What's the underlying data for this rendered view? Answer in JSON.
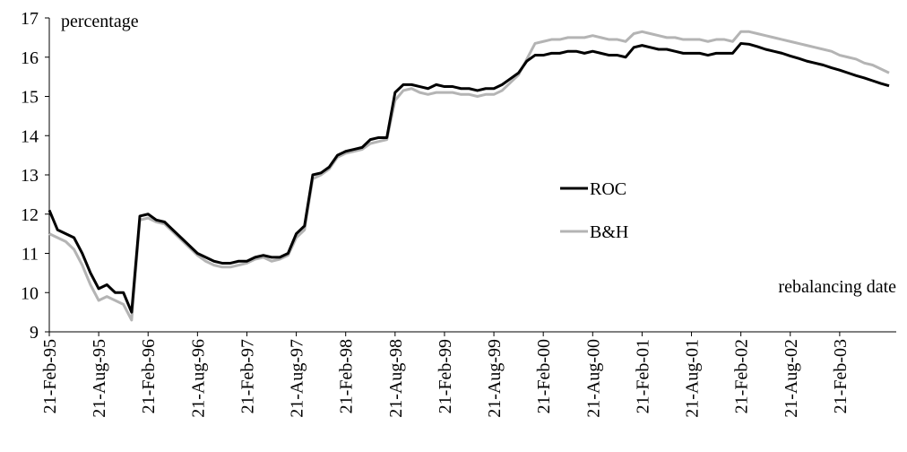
{
  "chart_data": {
    "type": "line",
    "annotations": [
      "percentage",
      "rebalancing date"
    ],
    "categories": [
      "21-Feb-95",
      null,
      null,
      null,
      null,
      null,
      "21-Aug-95",
      null,
      null,
      null,
      null,
      null,
      "21-Feb-96",
      null,
      null,
      null,
      null,
      null,
      "21-Aug-96",
      null,
      null,
      null,
      null,
      null,
      "21-Feb-97",
      null,
      null,
      null,
      null,
      null,
      "21-Aug-97",
      null,
      null,
      null,
      null,
      null,
      "21-Feb-98",
      null,
      null,
      null,
      null,
      null,
      "21-Aug-98",
      null,
      null,
      null,
      null,
      null,
      "21-Feb-99",
      null,
      null,
      null,
      null,
      null,
      "21-Aug-99",
      null,
      null,
      null,
      null,
      null,
      "21-Feb-00",
      null,
      null,
      null,
      null,
      null,
      "21-Aug-00",
      null,
      null,
      null,
      null,
      null,
      "21-Feb-01",
      null,
      null,
      null,
      null,
      null,
      "21-Aug-01",
      null,
      null,
      null,
      null,
      null,
      "21-Feb-02",
      null,
      null,
      null,
      null,
      null,
      "21-Aug-02",
      null,
      null,
      null,
      null,
      null,
      "21-Feb-03",
      null,
      null,
      null,
      null,
      null,
      null
    ],
    "series": [
      {
        "name": "ROC",
        "color": "#000000",
        "values": [
          12.1,
          11.6,
          11.5,
          11.4,
          11.0,
          10.5,
          10.1,
          10.2,
          10.0,
          10.0,
          9.5,
          11.95,
          12.0,
          11.85,
          11.8,
          11.6,
          11.4,
          11.2,
          11.0,
          10.9,
          10.8,
          10.75,
          10.75,
          10.8,
          10.8,
          10.9,
          10.95,
          10.9,
          10.9,
          11.0,
          11.5,
          11.7,
          13.0,
          13.05,
          13.2,
          13.5,
          13.6,
          13.65,
          13.7,
          13.9,
          13.95,
          13.95,
          15.1,
          15.3,
          15.3,
          15.25,
          15.2,
          15.3,
          15.25,
          15.25,
          15.2,
          15.2,
          15.15,
          15.2,
          15.2,
          15.3,
          15.45,
          15.6,
          15.9,
          16.05,
          16.05,
          16.1,
          16.1,
          16.15,
          16.15,
          16.1,
          16.15,
          16.1,
          16.05,
          16.05,
          16.0,
          16.25,
          16.3,
          16.25,
          16.2,
          16.2,
          16.15,
          16.1,
          16.1,
          16.1,
          16.05,
          16.1,
          16.1,
          16.1,
          16.35,
          16.33,
          16.27,
          16.2,
          16.15,
          16.1,
          16.03,
          15.97,
          15.9,
          15.85,
          15.8,
          15.73,
          15.67,
          15.6,
          15.53,
          15.47,
          15.4,
          15.33,
          15.27
        ]
      },
      {
        "name": "B&H",
        "color": "#b4b4b4",
        "values": [
          11.5,
          11.4,
          11.3,
          11.1,
          10.7,
          10.2,
          9.8,
          9.9,
          9.8,
          9.7,
          9.3,
          11.85,
          11.9,
          11.8,
          11.75,
          11.55,
          11.35,
          11.15,
          10.95,
          10.8,
          10.7,
          10.65,
          10.65,
          10.7,
          10.75,
          10.85,
          10.9,
          10.8,
          10.85,
          10.95,
          11.4,
          11.6,
          12.9,
          13.0,
          13.15,
          13.45,
          13.55,
          13.6,
          13.65,
          13.8,
          13.85,
          13.9,
          14.9,
          15.15,
          15.2,
          15.1,
          15.05,
          15.1,
          15.1,
          15.1,
          15.05,
          15.05,
          15.0,
          15.05,
          15.05,
          15.15,
          15.35,
          15.55,
          15.95,
          16.35,
          16.4,
          16.45,
          16.45,
          16.5,
          16.5,
          16.5,
          16.55,
          16.5,
          16.45,
          16.45,
          16.4,
          16.6,
          16.65,
          16.6,
          16.55,
          16.5,
          16.5,
          16.45,
          16.45,
          16.45,
          16.4,
          16.45,
          16.45,
          16.4,
          16.65,
          16.65,
          16.6,
          16.55,
          16.5,
          16.45,
          16.4,
          16.35,
          16.3,
          16.25,
          16.2,
          16.15,
          16.05,
          16.0,
          15.95,
          15.85,
          15.8,
          15.7,
          15.6
        ]
      }
    ],
    "ylim": [
      9,
      17
    ],
    "yticks": [
      9,
      10,
      11,
      12,
      13,
      14,
      15,
      16,
      17
    ],
    "grid": false
  }
}
